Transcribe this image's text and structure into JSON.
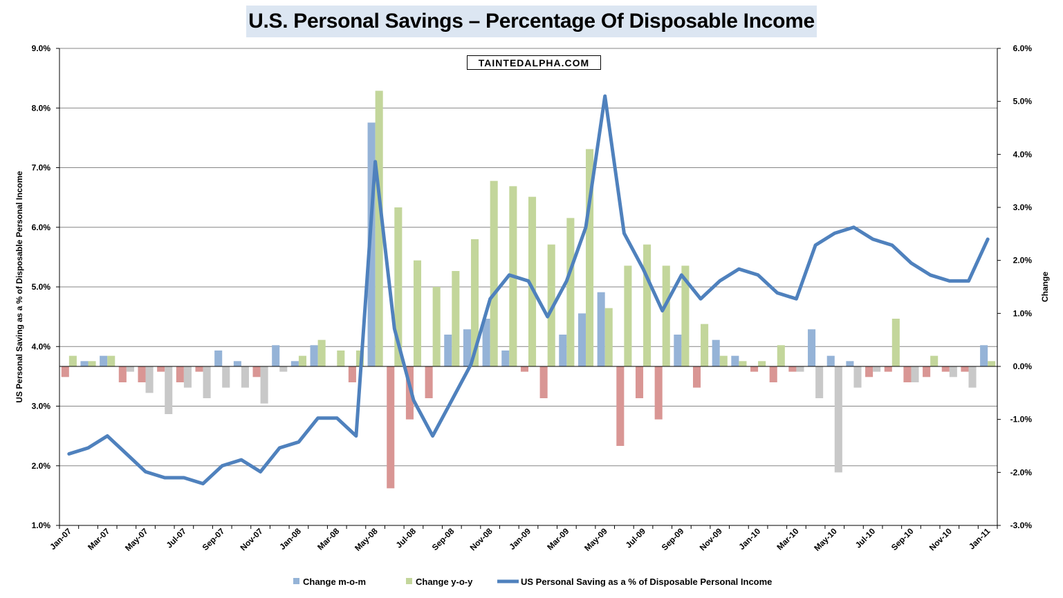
{
  "colors": {
    "mom_pos": "#95b3d7",
    "yoy_pos": "#c3d69b",
    "mom_neg": "#d99694",
    "yoy_neg": "#c8c8c8",
    "line": "#4f81bd"
  },
  "chart_data": {
    "type": "bar+line",
    "title": "U.S. Personal Savings – Percentage Of Disposable Income",
    "watermark": "TAINTEDALPHA.COM",
    "ylabel": "US Personal Saving as a % of Disposable Personal Income",
    "y2label": "Change",
    "ylim": [
      1.0,
      9.0
    ],
    "y2lim": [
      -3.0,
      6.0
    ],
    "yticks": [
      "1.0%",
      "2.0%",
      "3.0%",
      "4.0%",
      "5.0%",
      "6.0%",
      "7.0%",
      "8.0%",
      "9.0%"
    ],
    "y2ticks": [
      "-3.0%",
      "-2.0%",
      "-1.0%",
      "0.0%",
      "1.0%",
      "2.0%",
      "3.0%",
      "4.0%",
      "5.0%",
      "6.0%"
    ],
    "categories": [
      "Jan-07",
      "Feb-07",
      "Mar-07",
      "Apr-07",
      "May-07",
      "Jun-07",
      "Jul-07",
      "Aug-07",
      "Sep-07",
      "Oct-07",
      "Nov-07",
      "Dec-07",
      "Jan-08",
      "Feb-08",
      "Mar-08",
      "Apr-08",
      "May-08",
      "Jun-08",
      "Jul-08",
      "Aug-08",
      "Sep-08",
      "Oct-08",
      "Nov-08",
      "Dec-08",
      "Jan-09",
      "Feb-09",
      "Mar-09",
      "Apr-09",
      "May-09",
      "Jun-09",
      "Jul-09",
      "Aug-09",
      "Sep-09",
      "Oct-09",
      "Nov-09",
      "Dec-09",
      "Jan-10",
      "Feb-10",
      "Mar-10",
      "Apr-10",
      "May-10",
      "Jun-10",
      "Jul-10",
      "Aug-10",
      "Sep-10",
      "Oct-10",
      "Nov-10",
      "Dec-10",
      "Jan-11"
    ],
    "xtick_labels": [
      "Jan-07",
      "Mar-07",
      "May-07",
      "Jul-07",
      "Sep-07",
      "Nov-07",
      "Jan-08",
      "Mar-08",
      "May-08",
      "Jul-08",
      "Sep-08",
      "Nov-08",
      "Jan-09",
      "Mar-09",
      "May-09",
      "Jul-09",
      "Sep-09",
      "Nov-09",
      "Jan-10",
      "Mar-10",
      "May-10",
      "Jul-10",
      "Sep-10",
      "Nov-10",
      "Jan-11"
    ],
    "series": [
      {
        "name": "Change m-o-m",
        "type": "bar",
        "axis": "right",
        "values": [
          -0.2,
          0.1,
          0.2,
          -0.3,
          -0.3,
          -0.1,
          -0.3,
          -0.1,
          0.3,
          0.1,
          -0.2,
          0.4,
          0.1,
          0.4,
          0.0,
          -0.3,
          4.6,
          -2.3,
          -1.0,
          -0.6,
          0.6,
          0.7,
          0.9,
          0.3,
          -0.1,
          -0.6,
          0.6,
          1.0,
          1.4,
          -1.5,
          -0.6,
          -1.0,
          0.6,
          -0.4,
          0.5,
          0.2,
          -0.1,
          -0.3,
          -0.1,
          0.7,
          0.2,
          0.1,
          -0.2,
          -0.1,
          -0.3,
          -0.2,
          -0.1,
          -0.1,
          0.4
        ]
      },
      {
        "name": "Change y-o-y",
        "type": "bar",
        "axis": "right",
        "values": [
          0.2,
          0.1,
          0.2,
          -0.1,
          -0.5,
          -0.9,
          -0.4,
          -0.6,
          -0.4,
          -0.4,
          -0.7,
          -0.1,
          0.2,
          0.5,
          0.3,
          0.3,
          5.2,
          3.0,
          2.0,
          1.5,
          1.8,
          2.4,
          3.5,
          3.4,
          3.2,
          2.3,
          2.8,
          4.1,
          1.1,
          1.9,
          2.3,
          1.9,
          1.9,
          0.8,
          0.2,
          0.1,
          0.1,
          0.4,
          -0.1,
          -0.6,
          -2.0,
          -0.4,
          -0.1,
          0.9,
          -0.3,
          0.2,
          -0.2,
          -0.4,
          0.1
        ]
      },
      {
        "name": "US Personal Saving as a % of Disposable Personal Income",
        "type": "line",
        "axis": "left",
        "values": [
          2.2,
          2.3,
          2.5,
          2.2,
          1.9,
          1.8,
          1.8,
          1.7,
          2.0,
          2.1,
          1.9,
          2.3,
          2.4,
          2.8,
          2.8,
          2.5,
          7.1,
          4.3,
          3.1,
          2.5,
          3.1,
          3.7,
          4.8,
          5.2,
          5.1,
          4.5,
          5.1,
          6.0,
          8.2,
          5.9,
          5.3,
          4.6,
          5.2,
          4.8,
          5.1,
          5.3,
          5.2,
          4.9,
          4.8,
          5.7,
          5.9,
          6.0,
          5.8,
          5.7,
          5.4,
          5.2,
          5.1,
          5.1,
          5.8
        ]
      }
    ],
    "legend": {
      "position": "bottom",
      "entries": [
        "Change m-o-m",
        "Change y-o-y",
        "US Personal Saving as a % of Disposable Personal Income"
      ]
    }
  }
}
